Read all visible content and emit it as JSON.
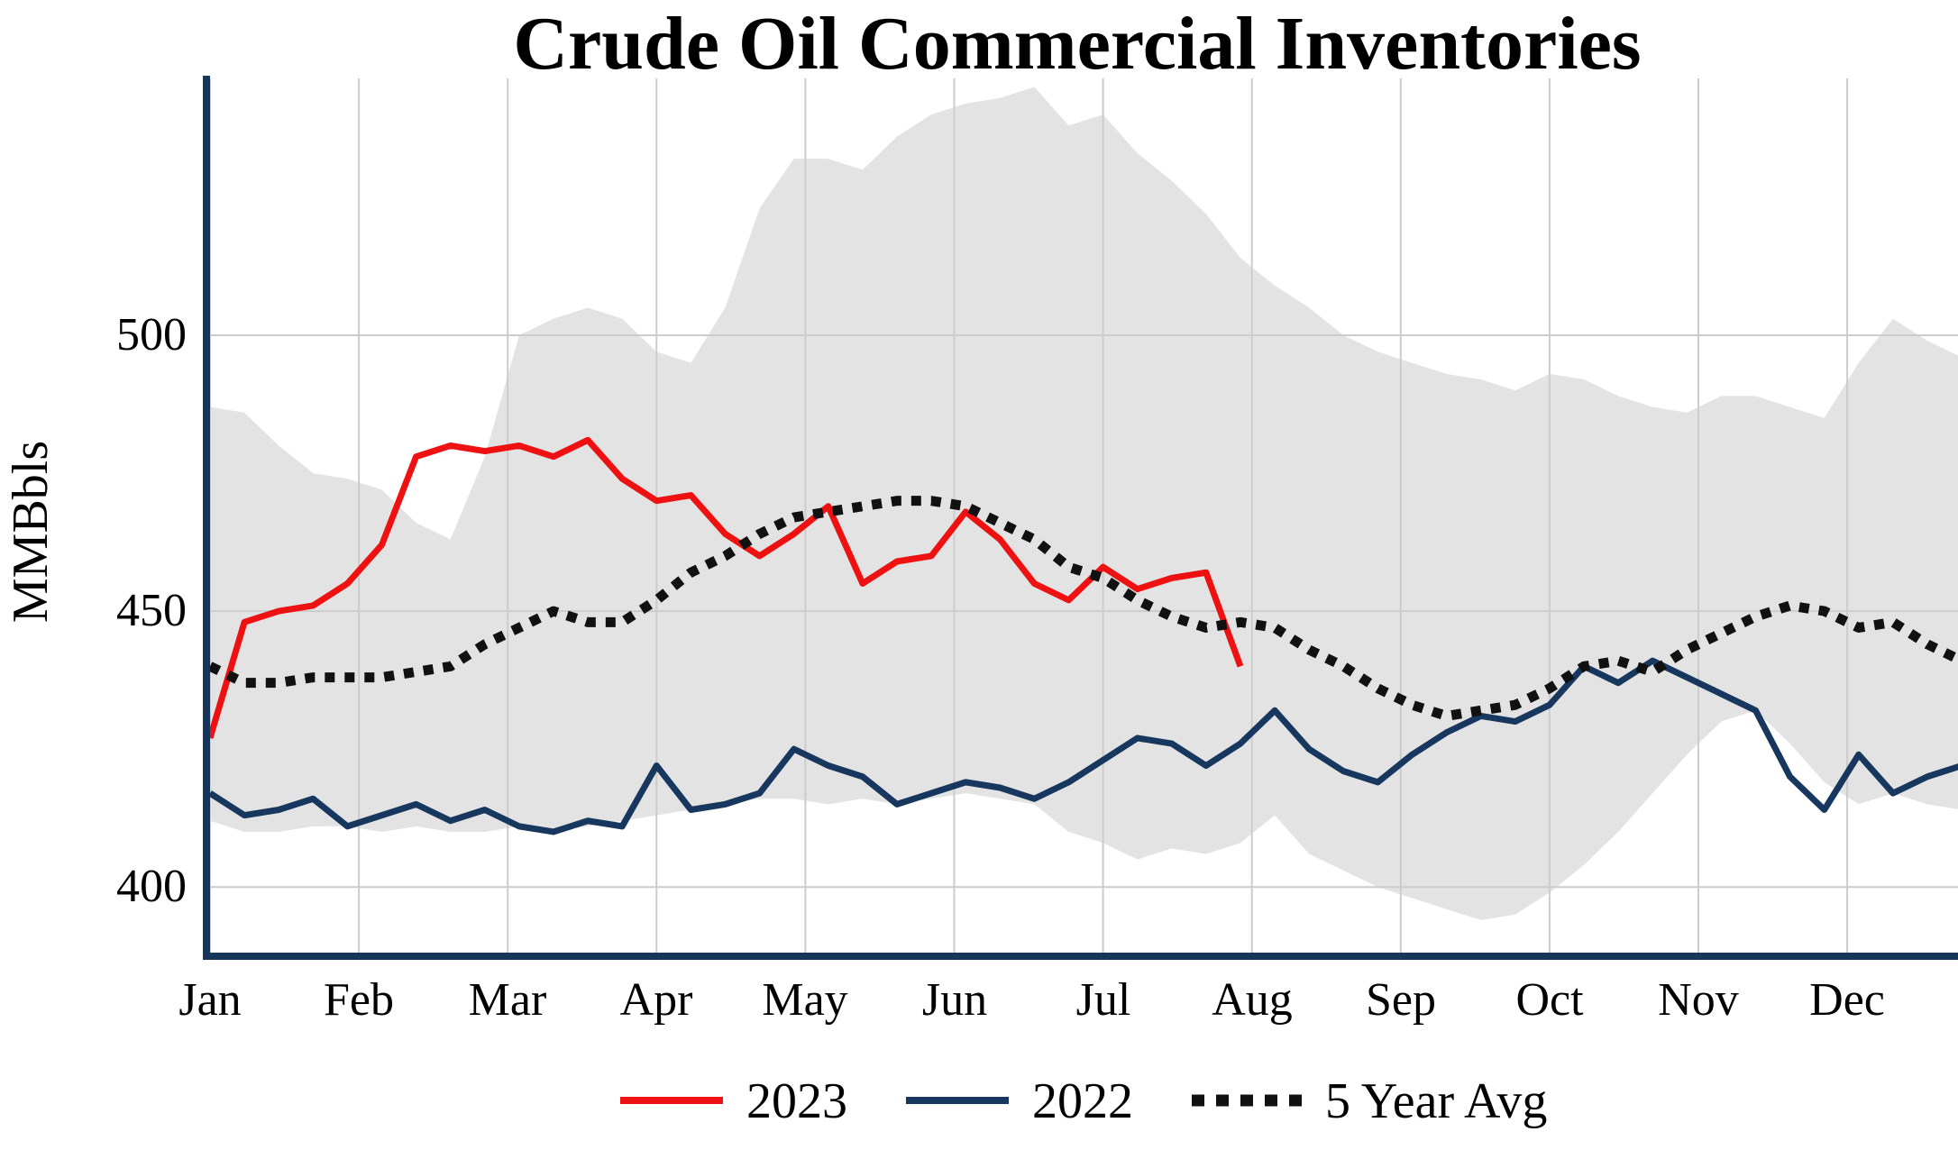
{
  "chart_data": {
    "type": "line",
    "title": "Crude Oil Commercial Inventories",
    "ylabel": "MMBbls",
    "x_axis": {
      "unit": "weekly",
      "months": [
        "Jan",
        "Feb",
        "Mar",
        "Apr",
        "May",
        "Jun",
        "Jul",
        "Aug",
        "Sep",
        "Oct",
        "Nov",
        "Dec"
      ]
    },
    "y_axis": {
      "ticks": [
        500,
        450,
        400
      ],
      "tick_labels": [
        "500",
        "450",
        "400"
      ],
      "range": [
        387,
        547
      ],
      "grid": true
    },
    "axis_color": "#16365c",
    "grid_color": "#cccccc",
    "series": [
      {
        "name": "2023",
        "color": "#ee1111",
        "style": "solid",
        "values": [
          427,
          448,
          450,
          451,
          455,
          462,
          478,
          480,
          479,
          480,
          478,
          481,
          474,
          470,
          471,
          464,
          460,
          464,
          469,
          455,
          459,
          460,
          468,
          463,
          455,
          452,
          458,
          454,
          456,
          457,
          440
        ]
      },
      {
        "name": "2022",
        "color": "#17375e",
        "style": "solid",
        "values": [
          417,
          413,
          414,
          416,
          411,
          413,
          415,
          412,
          414,
          411,
          410,
          412,
          411,
          422,
          414,
          415,
          417,
          425,
          422,
          420,
          415,
          417,
          419,
          418,
          416,
          419,
          423,
          427,
          426,
          422,
          426,
          432,
          425,
          421,
          419,
          424,
          428,
          431,
          430,
          433,
          440,
          437,
          441,
          438,
          435,
          432,
          420,
          414,
          424,
          417,
          420,
          422
        ]
      },
      {
        "name": "5 Year Avg",
        "color": "#111111",
        "style": "dotted",
        "values": [
          440,
          437,
          437,
          438,
          438,
          438,
          439,
          440,
          444,
          447,
          450,
          448,
          448,
          452,
          457,
          460,
          464,
          467,
          468,
          469,
          470,
          470,
          469,
          466,
          463,
          458,
          456,
          452,
          449,
          447,
          448,
          447,
          443,
          440,
          436,
          433,
          431,
          432,
          433,
          436,
          440,
          441,
          439,
          443,
          446,
          449,
          451,
          450,
          447,
          448,
          444,
          441
        ]
      }
    ],
    "band": {
      "name": "5-year range",
      "fill": "#e3e3e3",
      "upper": [
        487,
        486,
        480,
        475,
        474,
        472,
        466,
        463,
        478,
        500,
        503,
        505,
        503,
        497,
        495,
        505,
        523,
        532,
        532,
        530,
        536,
        540,
        542,
        543,
        545,
        538,
        540,
        533,
        528,
        522,
        514,
        509,
        505,
        500,
        497,
        495,
        493,
        492,
        490,
        493,
        492,
        489,
        487,
        486,
        489,
        489,
        487,
        485,
        495,
        503,
        499,
        496
      ],
      "lower": [
        412,
        410,
        410,
        411,
        411,
        410,
        411,
        410,
        410,
        411,
        410,
        411,
        412,
        413,
        414,
        415,
        416,
        416,
        415,
        416,
        415,
        416,
        417,
        416,
        415,
        410,
        408,
        405,
        407,
        406,
        408,
        413,
        406,
        403,
        400,
        398,
        396,
        394,
        395,
        399,
        404,
        410,
        417,
        424,
        430,
        432,
        426,
        419,
        415,
        417,
        415,
        414
      ]
    },
    "legend": {
      "position": "bottom",
      "items": [
        "2023",
        "2022",
        "5 Year Avg"
      ]
    }
  }
}
